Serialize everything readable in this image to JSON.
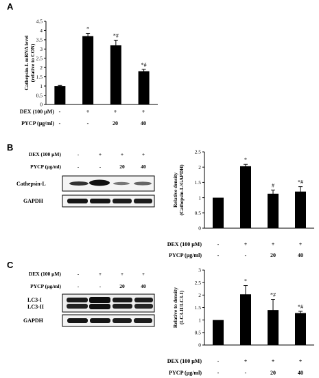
{
  "panels": {
    "A": {
      "letter": "A"
    },
    "B": {
      "letter": "B"
    },
    "C": {
      "letter": "C"
    }
  },
  "conditions": {
    "dex_label": "DEX (100 μM)",
    "pycp_label": "PYCP (μg/ml)",
    "dex_marks": [
      "-",
      "+",
      "+",
      "+"
    ],
    "pycp_marks": [
      "-",
      "-",
      "20",
      "40"
    ]
  },
  "blots": {
    "B": {
      "bands": [
        "Cathepsin-L",
        "GAPDH"
      ]
    },
    "C": {
      "bands": [
        "LC3-I\nLC3-II",
        "GAPDH"
      ]
    }
  },
  "chart_data": [
    {
      "id": "A",
      "type": "bar",
      "ylabel": "Cathepsin-L mRNA level\n(relative to CON)",
      "ylim": [
        0,
        4.5
      ],
      "yticks": [
        "0",
        "0.5",
        "1",
        "1.5",
        "2",
        "2.5",
        "3",
        "3.5",
        "4",
        "4.5"
      ],
      "values": [
        1.0,
        3.7,
        3.2,
        1.8
      ],
      "errors": [
        0.03,
        0.15,
        0.28,
        0.1
      ],
      "annotations": [
        "",
        "*",
        "*#",
        "*#"
      ],
      "bar_color": "#000000"
    },
    {
      "id": "B",
      "type": "bar",
      "ylabel": "Relative density\n(Cathepsin-L/GAPDH)",
      "ylim": [
        0,
        2.5
      ],
      "yticks": [
        "0",
        "0.5",
        "1",
        "1.5",
        "2",
        "2.5"
      ],
      "values": [
        1.0,
        2.03,
        1.13,
        1.2
      ],
      "errors": [
        0.01,
        0.06,
        0.12,
        0.16
      ],
      "annotations": [
        "",
        "*",
        "#",
        "*#"
      ],
      "bar_color": "#000000"
    },
    {
      "id": "C",
      "type": "bar",
      "ylabel": "Relative to density\n(LC3-II/LC3-I)",
      "ylim": [
        0,
        3
      ],
      "yticks": [
        "0",
        "0.5",
        "1",
        "1.5",
        "2",
        "2.5",
        "3"
      ],
      "values": [
        1.0,
        2.03,
        1.4,
        1.28
      ],
      "errors": [
        0.01,
        0.35,
        0.43,
        0.07
      ],
      "annotations": [
        "",
        "*",
        "*#",
        "*#"
      ],
      "bar_color": "#000000"
    }
  ]
}
